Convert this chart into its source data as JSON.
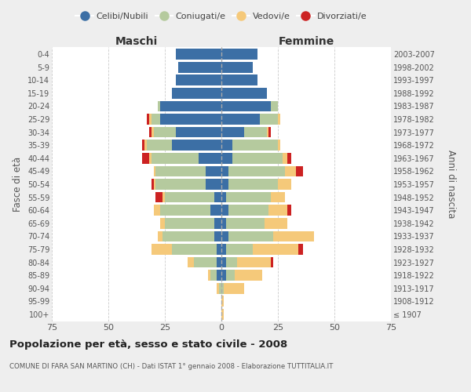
{
  "age_groups": [
    "100+",
    "95-99",
    "90-94",
    "85-89",
    "80-84",
    "75-79",
    "70-74",
    "65-69",
    "60-64",
    "55-59",
    "50-54",
    "45-49",
    "40-44",
    "35-39",
    "30-34",
    "25-29",
    "20-24",
    "15-19",
    "10-14",
    "5-9",
    "0-4"
  ],
  "birth_years": [
    "≤ 1907",
    "1908-1912",
    "1913-1917",
    "1918-1922",
    "1923-1927",
    "1928-1932",
    "1933-1937",
    "1938-1942",
    "1943-1947",
    "1948-1952",
    "1953-1957",
    "1958-1962",
    "1963-1967",
    "1968-1972",
    "1973-1977",
    "1978-1982",
    "1983-1987",
    "1988-1992",
    "1993-1997",
    "1998-2002",
    "2003-2007"
  ],
  "males_celibi": [
    0,
    0,
    0,
    2,
    2,
    2,
    3,
    3,
    5,
    3,
    7,
    7,
    10,
    22,
    20,
    27,
    27,
    22,
    20,
    19,
    20
  ],
  "males_coniugati": [
    0,
    0,
    1,
    3,
    10,
    20,
    23,
    22,
    22,
    22,
    22,
    22,
    21,
    11,
    10,
    4,
    1,
    0,
    0,
    0,
    0
  ],
  "males_vedovi": [
    0,
    0,
    1,
    1,
    3,
    9,
    2,
    2,
    3,
    1,
    1,
    1,
    1,
    1,
    1,
    1,
    0,
    0,
    0,
    0,
    0
  ],
  "males_divorziati": [
    0,
    0,
    0,
    0,
    0,
    0,
    0,
    0,
    0,
    3,
    1,
    0,
    3,
    1,
    1,
    1,
    0,
    0,
    0,
    0,
    0
  ],
  "females_nubili": [
    0,
    0,
    0,
    2,
    2,
    2,
    3,
    2,
    3,
    2,
    3,
    3,
    5,
    5,
    10,
    17,
    22,
    20,
    16,
    14,
    16
  ],
  "females_coniugate": [
    0,
    0,
    1,
    4,
    5,
    12,
    20,
    17,
    18,
    20,
    22,
    25,
    22,
    20,
    10,
    8,
    3,
    0,
    0,
    0,
    0
  ],
  "females_vedove": [
    1,
    1,
    9,
    12,
    15,
    20,
    18,
    10,
    8,
    6,
    6,
    5,
    2,
    1,
    1,
    1,
    0,
    0,
    0,
    0,
    0
  ],
  "females_divorziate": [
    0,
    0,
    0,
    0,
    1,
    2,
    0,
    0,
    2,
    0,
    0,
    3,
    2,
    0,
    1,
    0,
    0,
    0,
    0,
    0,
    0
  ],
  "color_celibi": "#3c6fa5",
  "color_coniugati": "#b5ca9e",
  "color_vedovi": "#f5c97a",
  "color_divorziati": "#cc2222",
  "xlim": 75,
  "title": "Popolazione per età, sesso e stato civile - 2008",
  "subtitle": "COMUNE DI FARA SAN MARTINO (CH) - Dati ISTAT 1° gennaio 2008 - Elaborazione TUTTITALIA.IT",
  "ylabel_left": "Fasce di età",
  "ylabel_right": "Anni di nascita",
  "label_maschi": "Maschi",
  "label_femmine": "Femmine",
  "legend_labels": [
    "Celibi/Nubili",
    "Coniugati/e",
    "Vedovi/e",
    "Divorziati/e"
  ],
  "bg_color": "#eeeeee",
  "plot_bg_color": "#ffffff"
}
